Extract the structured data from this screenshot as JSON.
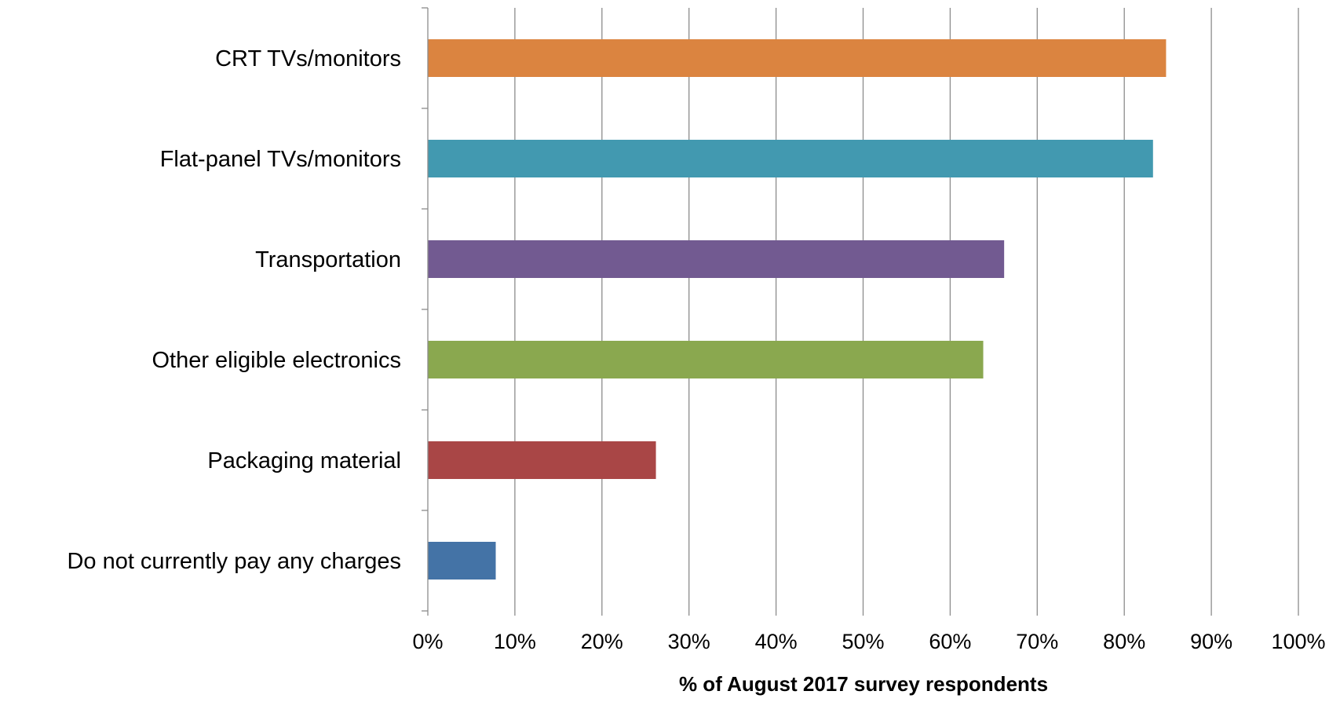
{
  "chart_data": {
    "type": "bar",
    "orientation": "horizontal",
    "categories": [
      "Do not currently pay any charges",
      "Packaging material",
      "Other eligible electronics",
      "Transportation",
      "Flat-panel TVs/monitors",
      "CRT TVs/monitors"
    ],
    "values": [
      7.8,
      26.2,
      63.8,
      66.2,
      83.3,
      84.8
    ],
    "colors": [
      "#4473a6",
      "#a94646",
      "#8aa84f",
      "#725a91",
      "#4299b0",
      "#db8440"
    ],
    "xlabel": "% of August 2017 survey respondents",
    "ylabel": "",
    "xlim": [
      0,
      100
    ],
    "x_ticks": [
      0,
      10,
      20,
      30,
      40,
      50,
      60,
      70,
      80,
      90,
      100
    ],
    "x_tick_labels": [
      "0%",
      "10%",
      "20%",
      "30%",
      "40%",
      "50%",
      "60%",
      "70%",
      "80%",
      "90%",
      "100%"
    ],
    "grid": "vertical",
    "legend": "none"
  }
}
